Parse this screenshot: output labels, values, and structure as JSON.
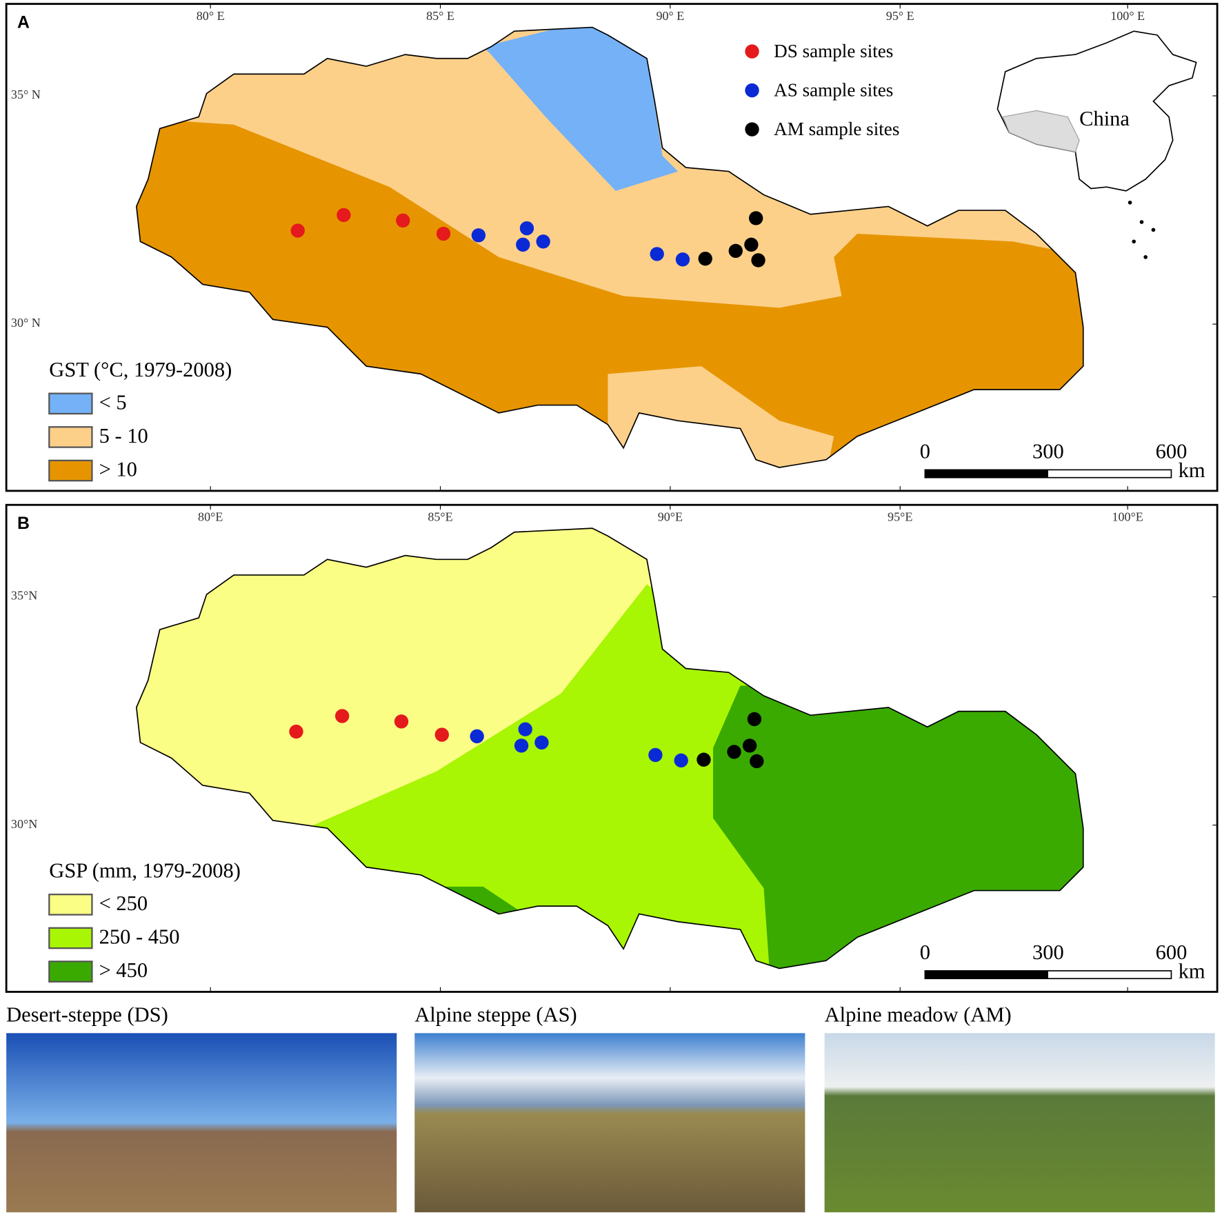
{
  "panels": [
    {
      "label": "A",
      "lon_ticks": [
        "80° E",
        "85° E",
        "90° E",
        "95° E",
        "100° E"
      ],
      "lat_ticks": [
        "35° N",
        "30° N"
      ],
      "legend": {
        "title": "GST (°C, 1979-2008)",
        "items": [
          "< 5",
          "5 - 10",
          "> 10"
        ]
      },
      "scale_bar": {
        "labels": [
          "0",
          "300",
          "600"
        ],
        "unit": "km"
      },
      "sites": [
        "DS sample sites",
        "AS sample sites",
        "AM sample sites"
      ],
      "inset_label": "China"
    },
    {
      "label": "B",
      "lon_ticks": [
        "80°E",
        "85°E",
        "90°E",
        "95°E",
        "100°E"
      ],
      "lat_ticks": [
        "35°N",
        "30°N"
      ],
      "legend": {
        "title": "GSP (mm, 1979-2008)",
        "items": [
          "< 250",
          "250 - 450",
          "> 450"
        ]
      },
      "scale_bar": {
        "labels": [
          "0",
          "300",
          "600"
        ],
        "unit": "km"
      }
    }
  ],
  "photos": [
    {
      "caption": "Desert-steppe (DS)"
    },
    {
      "caption": "Alpine steppe (AS)"
    },
    {
      "caption": "Alpine meadow (AM)"
    }
  ]
}
